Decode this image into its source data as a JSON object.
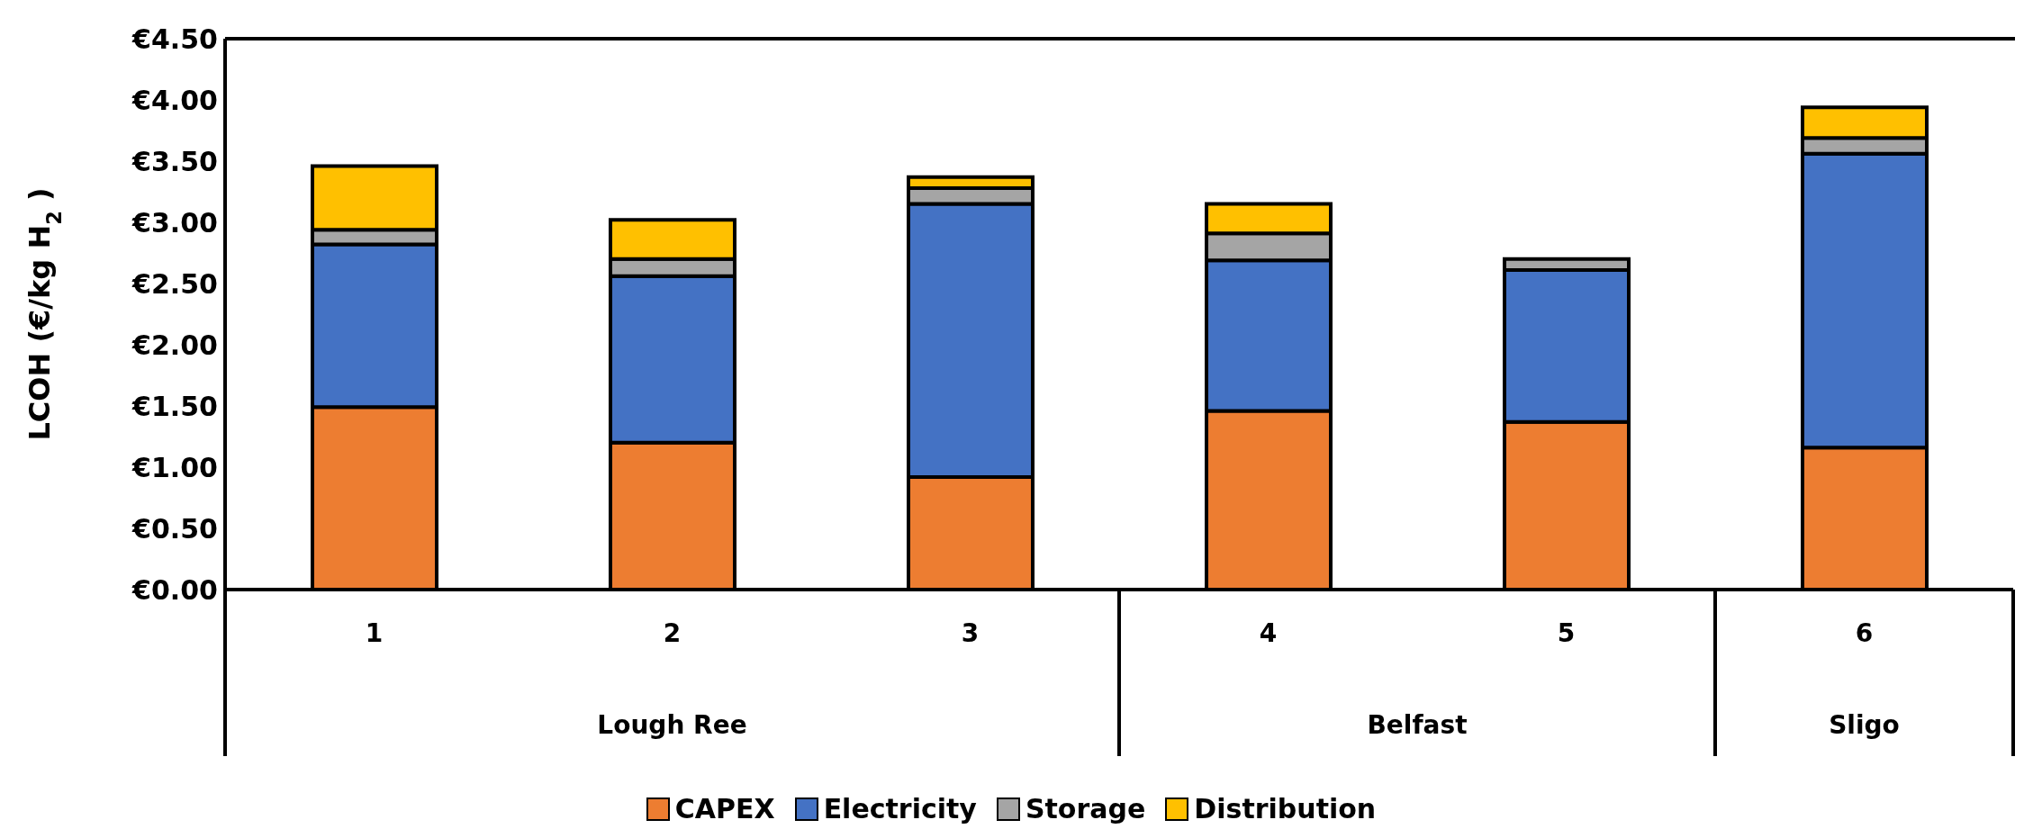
{
  "chart_data": {
    "type": "bar",
    "stacked": true,
    "ylabel": "LCOH (€/kg H$_{2}$)",
    "categories": [
      "1",
      "2",
      "3",
      "4",
      "5",
      "6"
    ],
    "annotations": [
      "Lough Ree",
      "Belfast",
      "Sligo"
    ],
    "series": [
      {
        "name": "CAPEX",
        "color": "#ed7d31",
        "values": [
          1.49,
          1.2,
          0.92,
          1.46,
          1.37,
          1.16
        ]
      },
      {
        "name": "Electricity",
        "color": "#4472c4",
        "values": [
          1.33,
          1.36,
          2.23,
          1.23,
          1.24,
          2.4
        ]
      },
      {
        "name": "Storage",
        "color": "#a5a5a5",
        "values": [
          0.12,
          0.14,
          0.13,
          0.22,
          0.09,
          0.13
        ]
      },
      {
        "name": "Distribution",
        "color": "#ffc000",
        "values": [
          0.52,
          0.32,
          0.09,
          0.24,
          0,
          0.25
        ]
      }
    ],
    "ylim": [
      0,
      4.5
    ],
    "yticks": [
      {
        "value": 0,
        "label": "€0.00"
      },
      {
        "value": 0.5,
        "label": "€0.50"
      },
      {
        "value": 1,
        "label": "€1.00"
      },
      {
        "value": 1.5,
        "label": "€1.50"
      },
      {
        "value": 2,
        "label": "€2.00"
      },
      {
        "value": 2.5,
        "label": "€2.50"
      },
      {
        "value": 3,
        "label": "€3.00"
      },
      {
        "value": 3.5,
        "label": "€3.50"
      },
      {
        "value": 4,
        "label": "€4.00"
      },
      {
        "value": 4.5,
        "label": "€4.50"
      }
    ],
    "legend": "bottom"
  }
}
